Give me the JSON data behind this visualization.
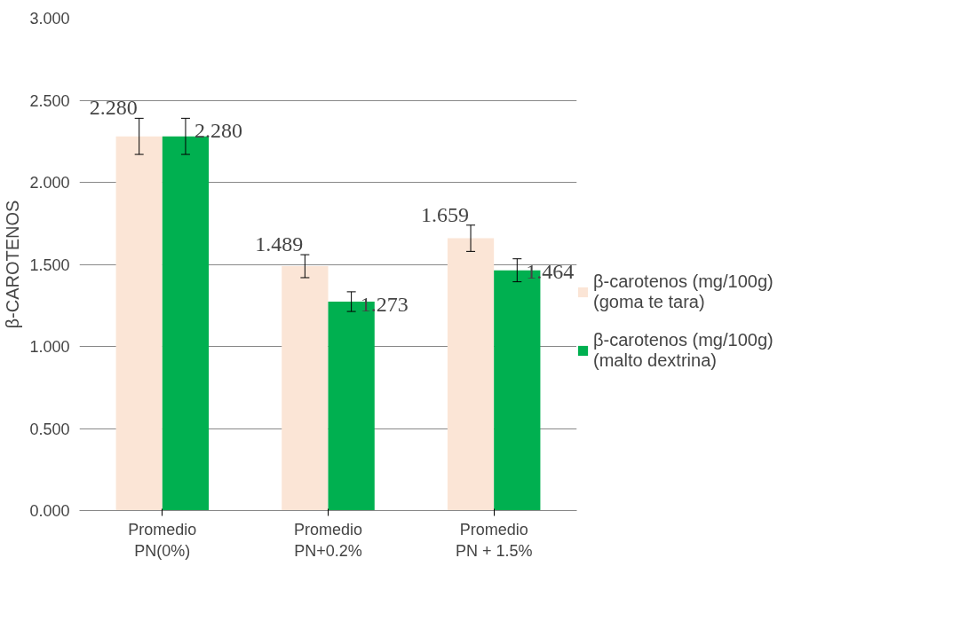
{
  "chart_data": {
    "type": "bar",
    "ylabel": "β-CAROTENOS",
    "categories": [
      "Promedio\nPN(0%)",
      "Promedio\nPN+0.2%",
      "Promedio\nPN + 1.5%"
    ],
    "series": [
      {
        "name": "β-carotenos (mg/100g) (goma te tara)",
        "color": "#fbe5d6",
        "values": [
          2.28,
          1.489,
          1.659
        ],
        "errors": [
          0.11,
          0.07,
          0.08
        ],
        "value_labels": [
          "2.280",
          "1.489",
          "1.659"
        ]
      },
      {
        "name": "β-carotenos (mg/100g) (malto dextrina)",
        "color": "#00b050",
        "values": [
          2.28,
          1.273,
          1.464
        ],
        "errors": [
          0.11,
          0.06,
          0.07
        ],
        "value_labels": [
          "2.280",
          "1.273",
          "1.464"
        ]
      }
    ],
    "ylim": [
      0,
      3
    ],
    "yticks": [
      {
        "value": 0,
        "label": "0.000"
      },
      {
        "value": 0.5,
        "label": "0.500"
      },
      {
        "value": 1,
        "label": "1.000"
      },
      {
        "value": 1.5,
        "label": "1.500"
      },
      {
        "value": 2,
        "label": "2.000"
      },
      {
        "value": 2.5,
        "label": "2.500"
      },
      {
        "value": 3,
        "label": "3.000"
      }
    ],
    "grid": "y",
    "legend": "right"
  }
}
